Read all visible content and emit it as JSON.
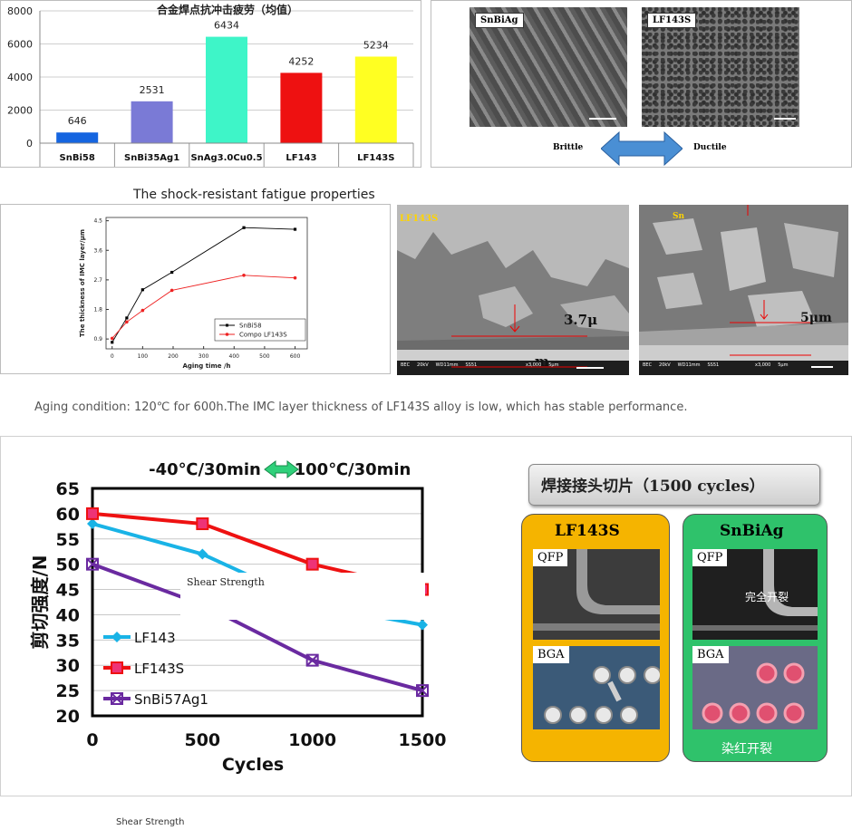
{
  "top_left_chart": {
    "title": "合金焊点抗冲击疲劳（均值）",
    "colors": [
      "#1565e0",
      "#7a7ad6",
      "#3ef5c8",
      "#ee1111",
      "#ffff22"
    ]
  },
  "caption_top": "The shock-resistant fatigue properties",
  "sem_top": {
    "left_label": "SnBiAg",
    "right_label": "LF143S",
    "left_word": "Brittle",
    "right_word": "Ductile"
  },
  "imc_chart": {
    "legend_colors": [
      "#000000",
      "#ee2222"
    ]
  },
  "sem_mid": {
    "left_label": "LF143S",
    "left_measure_1": "3.7μ",
    "left_measure_2": "m",
    "right_label": "Sn",
    "right_measure": "5μm",
    "footer_left": "BEC     20kV     WD11mm     SS51",
    "footer_left_2": "x3,000     5μm",
    "footer_right": "BEC     20kV     WD11mm     SS51",
    "footer_right_2": "x3,000     5μm"
  },
  "aging_note": "Aging condition: 120℃ for 600h.The IMC layer thickness of LF143S alloy is low, which has stable performance.",
  "shear_chart": {
    "cycle_left": "-40℃/30min",
    "cycle_right": "100℃/30min",
    "overlay_label": "Shear Strength",
    "colors": [
      "#19b3e6",
      "#ee1111",
      "#6a2aa0"
    ]
  },
  "solder_panel": {
    "title": "焊接接头切片（1500 cycles）",
    "card_left_title": "LF143S",
    "card_right_title": "SnBiAg",
    "qfp": "QFP",
    "bga": "BGA",
    "crack_text": "完全开裂",
    "dye_text": "染红开裂"
  },
  "footer_label": "Shear Strength",
  "chart_data": [
    {
      "type": "bar",
      "title": "合金焊点抗冲击疲劳（均值）",
      "categories": [
        "SnBi58",
        "SnBi35Ag1",
        "SnAg3.0Cu0.5",
        "LF143",
        "LF143S"
      ],
      "values": [
        646,
        2531,
        6434,
        4252,
        5234
      ],
      "value_labels": [
        "646",
        "2531",
        "6434",
        "4252",
        "5234"
      ],
      "ylim": [
        0,
        8000
      ],
      "yticks": [
        "0",
        "2000",
        "4000",
        "6000",
        "8000"
      ],
      "grid": true
    },
    {
      "type": "line",
      "xlabel": "Aging time /h",
      "ylabel": "The thickness of IMC layer/μm",
      "xlim": [
        -20,
        640
      ],
      "ylim": [
        0.6,
        4.6
      ],
      "xticks": [
        "0",
        "100",
        "200",
        "300",
        "400",
        "500",
        "600"
      ],
      "yticks": [
        "0.9",
        "1.8",
        "2.7",
        "3.6",
        "4.5"
      ],
      "legend_position": "bottom-right",
      "series": [
        {
          "name": "SnBi58",
          "x": [
            0,
            48,
            100,
            196,
            432,
            600
          ],
          "y": [
            0.8,
            1.54,
            2.4,
            2.93,
            4.29,
            4.24
          ]
        },
        {
          "name": "Compo LF143S",
          "x": [
            0,
            48,
            100,
            196,
            432,
            600
          ],
          "y": [
            0.92,
            1.42,
            1.77,
            2.38,
            2.84,
            2.76
          ]
        }
      ]
    },
    {
      "type": "line",
      "xlabel": "Cycles",
      "ylabel": "剪切强度/N",
      "xlim": [
        0,
        1500
      ],
      "ylim": [
        20,
        65
      ],
      "xticks": [
        "0",
        "500",
        "1000",
        "1500"
      ],
      "yticks": [
        "20",
        "25",
        "30",
        "35",
        "40",
        "45",
        "50",
        "55",
        "60",
        "65"
      ],
      "grid": true,
      "legend_position": "bottom-left",
      "series": [
        {
          "name": "LF143",
          "x": [
            0,
            500,
            1000,
            1500
          ],
          "y": [
            58,
            52,
            42,
            38
          ]
        },
        {
          "name": "LF143S",
          "x": [
            0,
            500,
            1000,
            1500
          ],
          "y": [
            60,
            58,
            50,
            45
          ]
        },
        {
          "name": "SnBi57Ag1",
          "x": [
            0,
            500,
            1000,
            1500
          ],
          "y": [
            50,
            42,
            31,
            25
          ]
        }
      ]
    }
  ]
}
